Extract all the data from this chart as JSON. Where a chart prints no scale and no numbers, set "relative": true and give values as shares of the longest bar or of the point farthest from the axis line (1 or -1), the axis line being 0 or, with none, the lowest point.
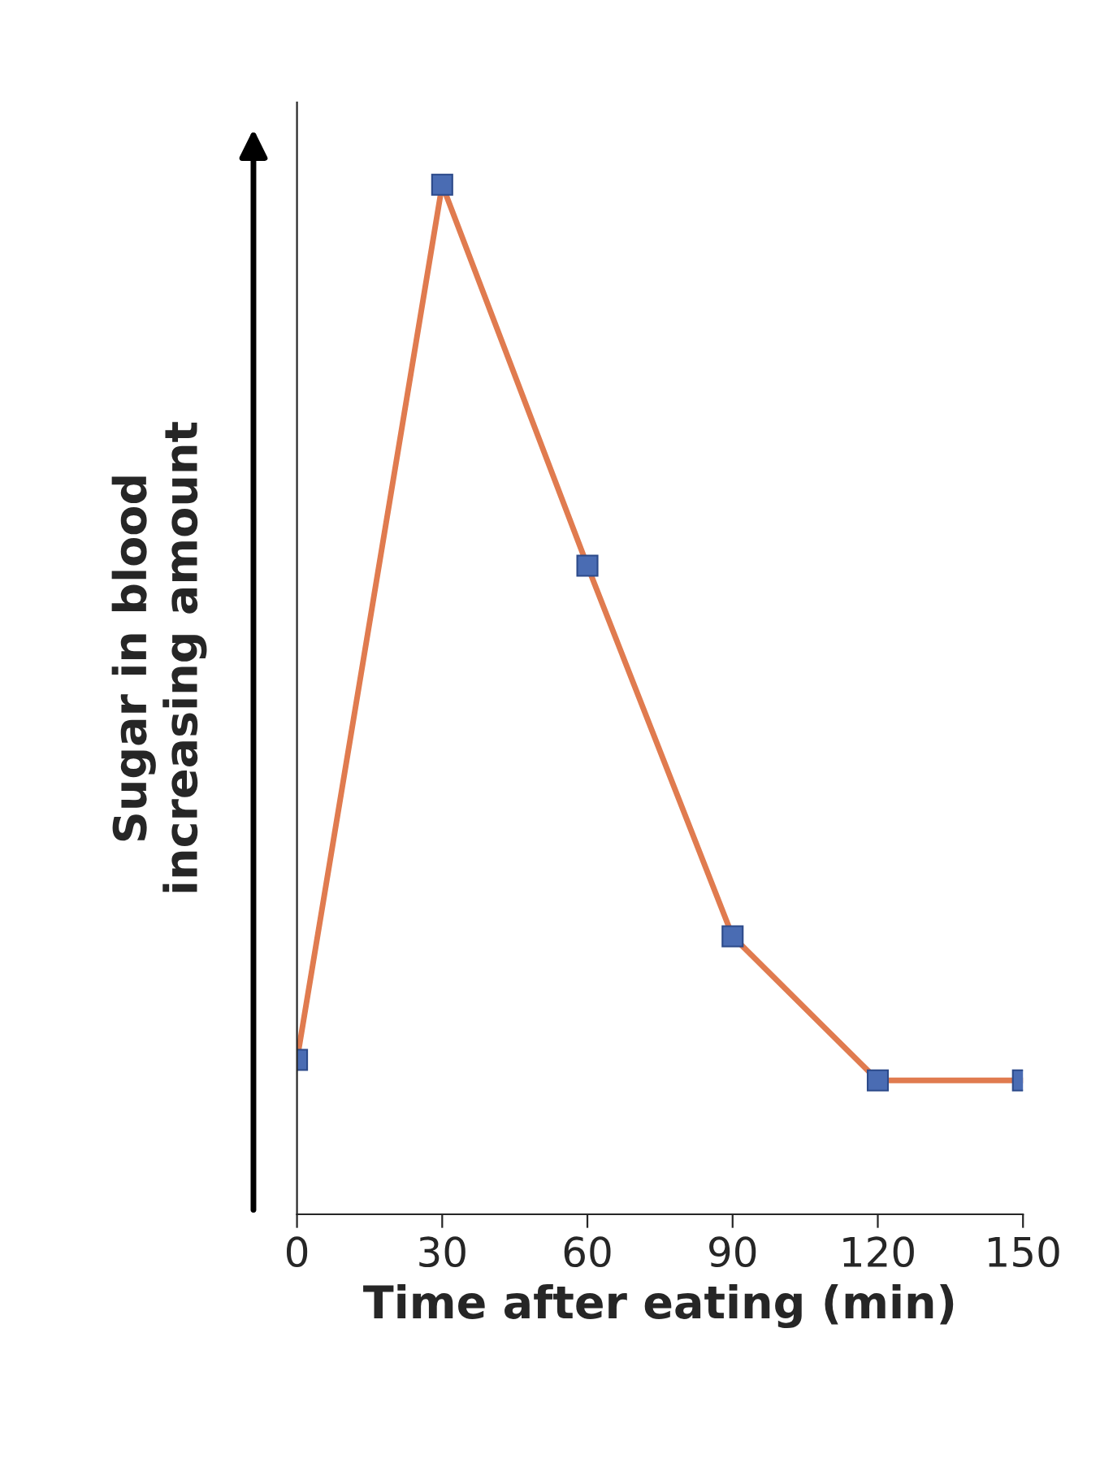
{
  "chart_data": {
    "type": "line",
    "xlabel": "Time after eating (min)",
    "ylabel": "Sugar in blood\nincreasing amount",
    "relative": true,
    "x": [
      0,
      30,
      60,
      90,
      120,
      150
    ],
    "series": [
      {
        "color": "#e07b4f",
        "values": [
          0.15,
          1.0,
          0.63,
          0.27,
          0.13,
          0.13
        ]
      }
    ],
    "xlim": [
      0,
      150
    ],
    "xticks": [
      0,
      30,
      60,
      90,
      120,
      150
    ],
    "marker": "square",
    "line_style": "solid",
    "grid": false,
    "legend": false
  }
}
